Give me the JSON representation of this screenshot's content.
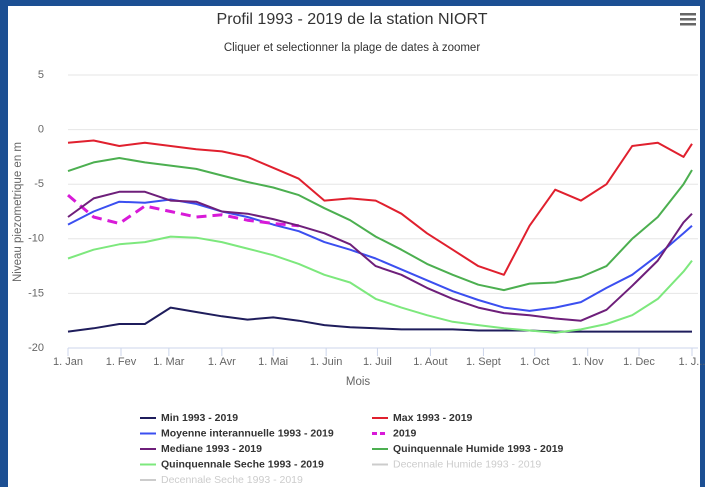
{
  "chart_data": {
    "type": "line",
    "title": "Profil 1993 - 2019 de la station NIORT",
    "subtitle": "Cliquer et selectionner la plage de dates à zoomer",
    "y_axis_label": "Niveau piezometrique en m",
    "x_axis_label": "Mois",
    "xlim": [
      0,
      365
    ],
    "xticks": [
      {
        "value": 0,
        "label": "1. Jan"
      },
      {
        "value": 31,
        "label": "1. Fev"
      },
      {
        "value": 59,
        "label": "1. Mar"
      },
      {
        "value": 90,
        "label": "1. Avr"
      },
      {
        "value": 120,
        "label": "1. Mai"
      },
      {
        "value": 151,
        "label": "1. Juin"
      },
      {
        "value": 181,
        "label": "1. Juil"
      },
      {
        "value": 212,
        "label": "1. Aout"
      },
      {
        "value": 243,
        "label": "1. Sept"
      },
      {
        "value": 273,
        "label": "1. Oct"
      },
      {
        "value": 304,
        "label": "1. Nov"
      },
      {
        "value": 334,
        "label": "1. Dec"
      },
      {
        "value": 365,
        "label": "1. J..."
      }
    ],
    "ylim": [
      -20,
      5
    ],
    "yticks": [
      -20,
      -15,
      -10,
      -5,
      0,
      5
    ],
    "grid": true,
    "x": [
      0,
      15,
      30,
      45,
      60,
      75,
      90,
      105,
      120,
      135,
      150,
      165,
      180,
      195,
      210,
      225,
      240,
      255,
      270,
      285,
      300,
      315,
      330,
      345,
      360,
      365
    ],
    "series": [
      {
        "name": "Min 1993 - 2019",
        "color": "#1f1d5c",
        "values": [
          -18.5,
          -18.2,
          -17.8,
          -17.8,
          -16.3,
          -16.7,
          -17.1,
          -17.4,
          -17.2,
          -17.5,
          -17.9,
          -18.1,
          -18.2,
          -18.3,
          -18.3,
          -18.3,
          -18.4,
          -18.4,
          -18.4,
          -18.5,
          -18.5,
          -18.5,
          -18.5,
          -18.5,
          -18.5,
          -18.5
        ]
      },
      {
        "name": "Max 1993 - 2019",
        "color": "#e0202e",
        "values": [
          -1.2,
          -1.0,
          -1.5,
          -1.2,
          -1.5,
          -1.8,
          -2.0,
          -2.5,
          -3.5,
          -4.5,
          -6.5,
          -6.3,
          -6.5,
          -7.7,
          -9.5,
          -11.0,
          -12.5,
          -13.3,
          -8.8,
          -5.5,
          -6.5,
          -5.0,
          -1.5,
          -1.2,
          -2.5,
          -1.3
        ]
      },
      {
        "name": "Moyenne interannuelle 1993 - 2019",
        "color": "#3b4ff0",
        "values": [
          -8.7,
          -7.5,
          -6.6,
          -6.7,
          -6.4,
          -6.8,
          -7.5,
          -8.0,
          -8.7,
          -9.3,
          -10.3,
          -11.0,
          -11.8,
          -12.8,
          -13.8,
          -14.8,
          -15.6,
          -16.3,
          -16.6,
          -16.3,
          -15.8,
          -14.5,
          -13.3,
          -11.5,
          -9.5,
          -8.8
        ]
      },
      {
        "name": "2019",
        "color": "#d81ad8",
        "dashed": true,
        "values": [
          -6.0,
          -8.0,
          -8.6,
          -7.0,
          -7.5,
          -8.0,
          -7.8,
          -8.3,
          -8.6,
          -8.8,
          null,
          null,
          null,
          null,
          null,
          null,
          null,
          null,
          null,
          null,
          null,
          null,
          null,
          null,
          null,
          null
        ]
      },
      {
        "name": "Mediane 1993 - 2019",
        "color": "#6e1f7a",
        "values": [
          -8.0,
          -6.3,
          -5.7,
          -5.7,
          -6.5,
          -6.6,
          -7.5,
          -7.7,
          -8.2,
          -8.8,
          -9.5,
          -10.5,
          -12.5,
          -13.3,
          -14.5,
          -15.5,
          -16.3,
          -16.8,
          -17.0,
          -17.3,
          -17.5,
          -16.5,
          -14.3,
          -12.0,
          -8.5,
          -7.7
        ]
      },
      {
        "name": "Quinquennale Humide 1993 - 2019",
        "color": "#4caf50",
        "values": [
          -3.8,
          -3.0,
          -2.6,
          -3.0,
          -3.3,
          -3.6,
          -4.2,
          -4.8,
          -5.3,
          -6.0,
          -7.2,
          -8.3,
          -9.8,
          -11.0,
          -12.3,
          -13.3,
          -14.2,
          -14.7,
          -14.1,
          -14.0,
          -13.5,
          -12.5,
          -10.0,
          -8.0,
          -5.0,
          -3.7
        ]
      },
      {
        "name": "Quinquennale Seche 1993 - 2019",
        "color": "#7de87d",
        "values": [
          -11.8,
          -11.0,
          -10.5,
          -10.3,
          -9.8,
          -9.9,
          -10.3,
          -10.9,
          -11.5,
          -12.3,
          -13.3,
          -14.0,
          -15.5,
          -16.3,
          -17.0,
          -17.6,
          -17.9,
          -18.2,
          -18.4,
          -18.6,
          -18.3,
          -17.8,
          -17.0,
          -15.5,
          -13.0,
          -12.0
        ]
      },
      {
        "name": "Decennale Humide 1993 - 2019",
        "color": "#cccccc",
        "visible": false
      },
      {
        "name": "Decennale Seche 1993 - 2019",
        "color": "#cccccc",
        "visible": false
      }
    ]
  }
}
